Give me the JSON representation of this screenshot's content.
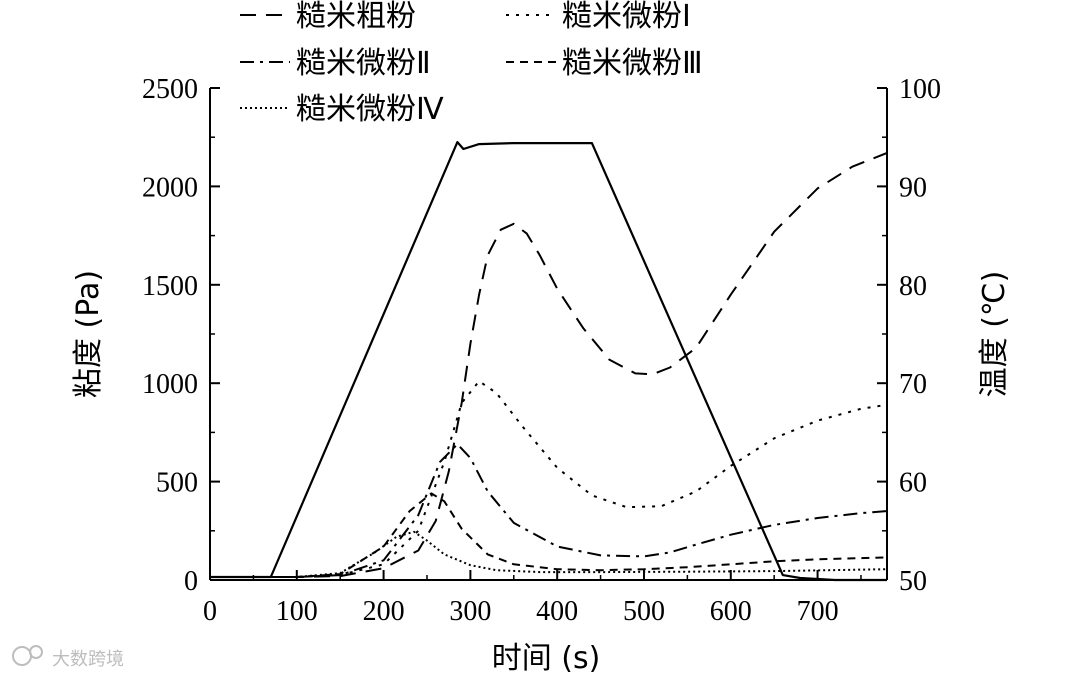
{
  "chart_data": {
    "type": "line",
    "xlabel": "时间 (s)",
    "ylabel_left": "粘度 (Pa)",
    "ylabel_right": "温度 (℃)",
    "xlim": [
      0,
      780
    ],
    "ylim_left": [
      0,
      2500
    ],
    "ylim_right": [
      50,
      100
    ],
    "x_ticks": [
      0,
      100,
      200,
      300,
      400,
      500,
      600,
      700
    ],
    "y_left_ticks": [
      0,
      500,
      1000,
      1500,
      2000,
      2500
    ],
    "y_right_ticks": [
      50,
      60,
      70,
      80,
      90,
      100
    ],
    "grid": false,
    "legend_position": "top-left",
    "series": [
      {
        "name": "糙米粗粉",
        "axis": "left",
        "dash": "long-dash",
        "x": [
          0,
          100,
          150,
          200,
          240,
          260,
          275,
          290,
          300,
          310,
          320,
          335,
          350,
          365,
          380,
          400,
          430,
          460,
          490,
          510,
          530,
          560,
          600,
          650,
          700,
          740,
          780
        ],
        "y": [
          15,
          15,
          20,
          60,
          150,
          300,
          550,
          900,
          1200,
          1450,
          1650,
          1780,
          1810,
          1760,
          1650,
          1480,
          1280,
          1120,
          1050,
          1045,
          1080,
          1180,
          1450,
          1770,
          1990,
          2100,
          2170
        ]
      },
      {
        "name": "糙米微粉Ⅰ",
        "axis": "left",
        "dash": "dot",
        "x": [
          0,
          100,
          150,
          200,
          240,
          270,
          290,
          310,
          330,
          360,
          400,
          440,
          480,
          520,
          560,
          600,
          650,
          700,
          750,
          780
        ],
        "y": [
          15,
          15,
          25,
          80,
          250,
          600,
          900,
          1010,
          950,
          780,
          570,
          430,
          370,
          375,
          450,
          580,
          720,
          810,
          870,
          890
        ]
      },
      {
        "name": "糙米微粉Ⅱ",
        "axis": "left",
        "dash": "dash-dot",
        "x": [
          0,
          100,
          150,
          200,
          240,
          265,
          285,
          300,
          320,
          350,
          400,
          450,
          500,
          530,
          560,
          600,
          650,
          700,
          750,
          780
        ],
        "y": [
          15,
          15,
          25,
          100,
          330,
          600,
          690,
          620,
          450,
          290,
          170,
          125,
          120,
          140,
          180,
          230,
          280,
          315,
          340,
          350
        ]
      },
      {
        "name": "糙米微粉Ⅲ",
        "axis": "left",
        "dash": "short-dash",
        "x": [
          0,
          100,
          150,
          200,
          230,
          255,
          270,
          290,
          320,
          350,
          400,
          450,
          500,
          550,
          600,
          650,
          700,
          780
        ],
        "y": [
          15,
          15,
          30,
          170,
          350,
          440,
          400,
          260,
          130,
          80,
          55,
          50,
          55,
          65,
          80,
          95,
          105,
          115
        ]
      },
      {
        "name": "糙米微粉Ⅳ",
        "axis": "left",
        "dash": "fine-dot",
        "x": [
          0,
          100,
          150,
          190,
          215,
          235,
          250,
          270,
          300,
          330,
          380,
          450,
          550,
          650,
          780
        ],
        "y": [
          15,
          15,
          35,
          140,
          220,
          245,
          200,
          130,
          75,
          50,
          40,
          40,
          42,
          45,
          55
        ]
      },
      {
        "name": "",
        "axis": "right",
        "dash": "solid",
        "x": [
          0,
          70,
          285,
          292,
          310,
          350,
          400,
          440,
          660,
          680,
          720,
          780
        ],
        "y": [
          50.3,
          50.3,
          94.5,
          93.8,
          94.3,
          94.4,
          94.4,
          94.4,
          50.5,
          50.2,
          50.0,
          50.0
        ]
      }
    ]
  },
  "watermark": "大数跨境"
}
